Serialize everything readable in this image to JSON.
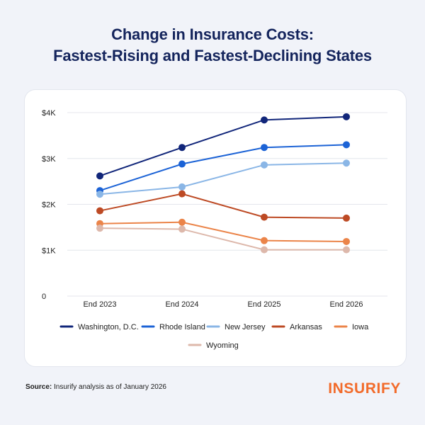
{
  "title_line1": "Change in Insurance Costs:",
  "title_line2": "Fastest-Rising and Fastest-Declining States",
  "footer": {
    "source_label": "Source:",
    "source_text": "Insurify analysis as of January 2026",
    "brand": "INSURIFY"
  },
  "colors": {
    "background": "#f1f3f9",
    "title": "#14245c",
    "brand": "#f26b2b"
  },
  "chart_data": {
    "type": "line",
    "categories": [
      "End 2023",
      "End 2024",
      "End 2025",
      "End 2026"
    ],
    "ylim": [
      0,
      4000
    ],
    "y_ticks": [
      0,
      1000,
      2000,
      3000,
      4000
    ],
    "y_tick_labels": [
      "0",
      "$1K",
      "$2K",
      "$3K",
      "$4K"
    ],
    "grid": true,
    "legend_placement": "bottom",
    "series": [
      {
        "name": "Washington, D.C.",
        "color": "#11267a",
        "values": [
          2620,
          3240,
          3840,
          3910
        ]
      },
      {
        "name": "Rhode Island",
        "color": "#1c63d6",
        "values": [
          2300,
          2880,
          3240,
          3300
        ]
      },
      {
        "name": "New Jersey",
        "color": "#8ab6e6",
        "values": [
          2220,
          2380,
          2860,
          2900
        ]
      },
      {
        "name": "Arkansas",
        "color": "#bd4a24",
        "values": [
          1860,
          2230,
          1720,
          1700
        ]
      },
      {
        "name": "Iowa",
        "color": "#eb8449",
        "values": [
          1580,
          1610,
          1210,
          1190
        ]
      },
      {
        "name": "Wyoming",
        "color": "#ddb8ab",
        "values": [
          1480,
          1460,
          1010,
          1010
        ]
      }
    ]
  }
}
